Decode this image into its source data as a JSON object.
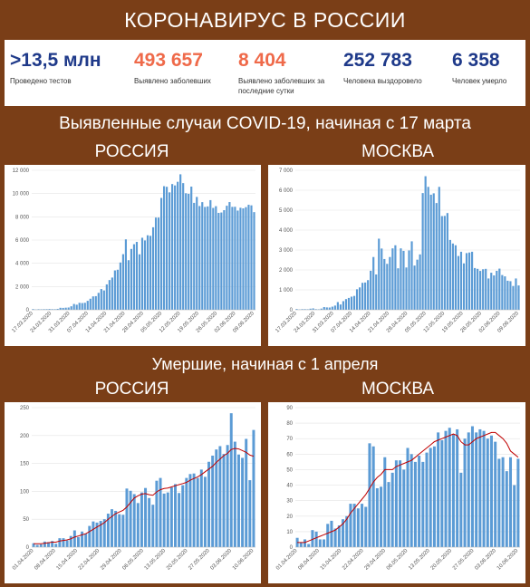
{
  "header": {
    "title": "КОРОНАВИРУС В РОССИИ"
  },
  "stats": [
    {
      "value": ">13,5 млн",
      "label": "Проведено тестов",
      "color": "#1f3a8a"
    },
    {
      "value": "493 657",
      "label": "Выявлено заболевших",
      "color": "#ef6a4a"
    },
    {
      "value": "8 404",
      "label": "Выявлено заболевших за последние сутки",
      "color": "#ef6a4a"
    },
    {
      "value": "252 783",
      "label": "Человека выздоровело",
      "color": "#1f3a8a"
    },
    {
      "value": "6 358",
      "label": "Человек умерло",
      "color": "#1f3a8a"
    }
  ],
  "section1": {
    "title": "Выявленные случаи COVID-19, начиная с 17 марта",
    "left": "РОССИЯ",
    "right": "МОСКВА"
  },
  "section2": {
    "title": "Умершие, начиная с 1 апреля",
    "left": "РОССИЯ",
    "right": "МОСКВА"
  },
  "colors": {
    "bar": "#5b9bd5",
    "trend": "#c00000",
    "brown": "#7a3e17"
  },
  "chart_data": [
    {
      "type": "bar",
      "title": "",
      "ylim": [
        0,
        12000
      ],
      "yticks": [
        "0",
        "2 000",
        "4 000",
        "6 000",
        "8 000",
        "10 000",
        "12 000"
      ],
      "xticks": [
        "17.03.2020",
        "24.03.2020",
        "31.03.2020",
        "07.04.2020",
        "14.04.2020",
        "21.04.2020",
        "28.04.2020",
        "05.05.2020",
        "12.05.2020",
        "19.05.2020",
        "26.05.2020",
        "02.06.2020",
        "09.06.2020"
      ],
      "values": [
        63,
        30,
        52,
        46,
        55,
        57,
        71,
        57,
        54,
        80,
        171,
        163,
        182,
        196,
        302,
        501,
        440,
        601,
        582,
        605,
        771,
        954,
        1154,
        1175,
        1459,
        1786,
        1667,
        2186,
        2558,
        2774,
        3388,
        3448,
        4070,
        4785,
        6060,
        4268,
        5236,
        5642,
        5842,
        4774,
        6198,
        5966,
        6411,
        6361,
        7099,
        7933,
        7933,
        9623,
        10633,
        10581,
        10102,
        10817,
        10699,
        11012,
        11656,
        10899,
        10028,
        9974,
        10598,
        9200,
        9709,
        8926,
        9263,
        8849,
        8894,
        9434,
        8764,
        8915,
        8338,
        8371,
        8572,
        8952,
        9268,
        8855,
        8863,
        8536,
        8779,
        8726,
        8831,
        9035,
        8985,
        8404
      ]
    },
    {
      "type": "bar",
      "title": "",
      "ylim": [
        0,
        7000
      ],
      "yticks": [
        "0",
        "1 000",
        "2 000",
        "3 000",
        "4 000",
        "5 000",
        "6 000",
        "7 000"
      ],
      "xticks": [
        "17.03.2020",
        "24.03.2020",
        "31.03.2020",
        "07.04.2020",
        "14.04.2020",
        "21.04.2020",
        "28.04.2020",
        "05.05.2020",
        "12.05.2020",
        "19.05.2020",
        "26.05.2020",
        "02.06.2020",
        "09.06.2020"
      ],
      "values": [
        40,
        20,
        33,
        33,
        28,
        56,
        71,
        33,
        26,
        60,
        136,
        120,
        114,
        157,
        212,
        387,
        267,
        434,
        536,
        595,
        660,
        697,
        1030,
        1124,
        1355,
        1370,
        1489,
        1959,
        2649,
        1774,
        3570,
        3075,
        2548,
        2306,
        2649,
        3083,
        3238,
        2083,
        3083,
        2957,
        2124,
        2979,
        3436,
        2220,
        2516,
        2780,
        5858,
        6703,
        6169,
        5775,
        5846,
        5358,
        6169,
        4703,
        4712,
        4855,
        3505,
        3327,
        3238,
        2699,
        2913,
        2330,
        2846,
        2876,
        2913,
        2095,
        2054,
        1951,
        2034,
        2054,
        1572,
        1861,
        1725,
        1955,
        2066,
        1745,
        1678,
        1459,
        1436,
        1195,
        1572,
        1222
      ]
    },
    {
      "type": "bar",
      "title": "",
      "ylim": [
        0,
        250
      ],
      "yticks": [
        "0",
        "50",
        "100",
        "150",
        "200",
        "250"
      ],
      "xticks": [
        "01.04.2020",
        "08.04.2020",
        "15.04.2020",
        "22.04.2020",
        "29.04.2020",
        "06.05.2020",
        "13.05.2020",
        "20.05.2020",
        "27.05.2020",
        "03.06.2020",
        "10.06.2020"
      ],
      "series": [
        {
          "name": "",
          "kind": "bars",
          "values": [
            7,
            4,
            5,
            10,
            9,
            11,
            6,
            16,
            16,
            12,
            20,
            30,
            18,
            28,
            24,
            38,
            46,
            44,
            47,
            50,
            60,
            68,
            65,
            59,
            58,
            105,
            101,
            95,
            79,
            98,
            106,
            88,
            76,
            119,
            124,
            96,
            98,
            107,
            113,
            97,
            111,
            124,
            131,
            132,
            124,
            139,
            126,
            153,
            164,
            175,
            181,
            167,
            183,
            240,
            189,
            166,
            160,
            194,
            120,
            210
          ]
        },
        {
          "name": "",
          "kind": "line",
          "values": [
            6,
            6,
            6,
            7,
            8,
            9,
            9,
            11,
            12,
            13,
            15,
            18,
            20,
            22,
            24,
            28,
            32,
            36,
            40,
            44,
            50,
            55,
            60,
            63,
            66,
            72,
            80,
            88,
            92,
            95,
            96,
            94,
            93,
            99,
            103,
            105,
            106,
            108,
            110,
            112,
            114,
            116,
            120,
            123,
            126,
            130,
            135,
            140,
            145,
            152,
            158,
            164,
            168,
            175,
            177,
            176,
            173,
            170,
            165,
            163
          ]
        }
      ]
    },
    {
      "type": "bar",
      "title": "",
      "ylim": [
        0,
        90
      ],
      "yticks": [
        "0",
        "10",
        "20",
        "30",
        "40",
        "50",
        "60",
        "70",
        "80",
        "90"
      ],
      "xticks": [
        "01.04.2020",
        "08.04.2020",
        "15.04.2020",
        "22.04.2020",
        "29.04.2020",
        "06.05.2020",
        "13.05.2020",
        "20.05.2020",
        "27.05.2020",
        "03.06.2020",
        "10.06.2020"
      ],
      "series": [
        {
          "name": "",
          "kind": "bars",
          "values": [
            6,
            3,
            5,
            2,
            11,
            10,
            5,
            5,
            15,
            17,
            12,
            14,
            18,
            20,
            28,
            28,
            25,
            28,
            26,
            67,
            65,
            38,
            39,
            58,
            42,
            48,
            56,
            56,
            50,
            64,
            60,
            55,
            59,
            55,
            61,
            64,
            65,
            74,
            69,
            75,
            77,
            73,
            76,
            48,
            70,
            74,
            78,
            74,
            76,
            75,
            70,
            72,
            68,
            57,
            58,
            49,
            58,
            40,
            57
          ]
        },
        {
          "name": "",
          "kind": "line",
          "values": [
            3,
            3,
            3,
            4,
            5,
            6,
            7,
            8,
            9,
            10,
            11,
            13,
            15,
            18,
            22,
            25,
            28,
            31,
            34,
            38,
            42,
            45,
            47,
            50,
            50,
            50,
            52,
            53,
            54,
            55,
            56,
            58,
            60,
            62,
            64,
            66,
            68,
            69,
            70,
            71,
            72,
            73,
            72,
            68,
            66,
            66,
            68,
            70,
            71,
            72,
            73,
            74,
            74,
            72,
            70,
            67,
            62,
            60,
            58
          ]
        }
      ]
    }
  ]
}
